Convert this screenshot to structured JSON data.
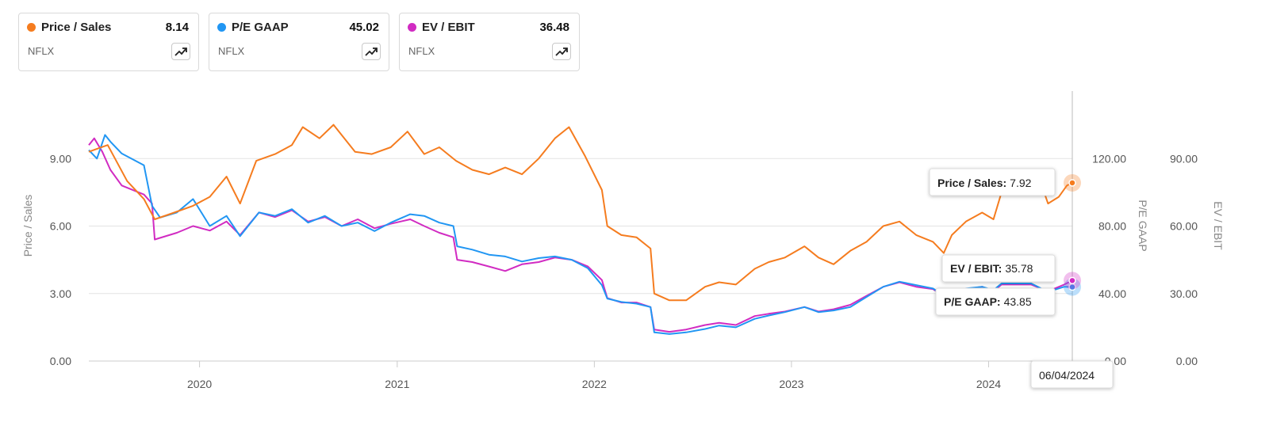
{
  "cards": [
    {
      "name": "Price / Sales",
      "value": "8.14",
      "ticker": "NFLX",
      "color": "#f57c1f",
      "icon": "trend-up-icon"
    },
    {
      "name": "P/E GAAP",
      "value": "45.02",
      "ticker": "NFLX",
      "color": "#2196f3",
      "icon": "trend-up-icon"
    },
    {
      "name": "EV / EBIT",
      "value": "36.48",
      "ticker": "NFLX",
      "color": "#d12bc2",
      "icon": "trend-up-icon"
    }
  ],
  "tooltips": {
    "ps": {
      "label": "Price / Sales:",
      "value": "7.92"
    },
    "ev": {
      "label": "EV / EBIT:",
      "value": "35.78"
    },
    "pe": {
      "label": "P/E GAAP:",
      "value": "43.85"
    },
    "date": "06/04/2024"
  },
  "chart_data": {
    "type": "line",
    "x_range": [
      "2019-06-10",
      "2024-06-04"
    ],
    "x_ticks": [
      "2020",
      "2021",
      "2022",
      "2023",
      "2024"
    ],
    "grid": true,
    "axes": {
      "left": {
        "title": "Price / Sales",
        "ticks": [
          "0.00",
          "3.00",
          "6.00",
          "9.00"
        ],
        "range": [
          0,
          12
        ]
      },
      "right1": {
        "title": "P/E GAAP",
        "ticks": [
          "0.00",
          "40.00",
          "80.00",
          "120.00"
        ],
        "range": [
          0,
          160
        ]
      },
      "right2": {
        "title": "EV / EBIT",
        "ticks": [
          "0.00",
          "30.00",
          "60.00",
          "90.00"
        ],
        "range": [
          0,
          120
        ]
      }
    },
    "series": [
      {
        "name": "Price / Sales",
        "color": "#f57c1f",
        "axis": "left",
        "points": [
          [
            "2019-06-10",
            9.3
          ],
          [
            "2019-07-15",
            9.6
          ],
          [
            "2019-08-20",
            8.0
          ],
          [
            "2019-09-20",
            7.2
          ],
          [
            "2019-10-10",
            6.3
          ],
          [
            "2019-11-15",
            6.6
          ],
          [
            "2019-12-20",
            6.9
          ],
          [
            "2020-01-20",
            7.3
          ],
          [
            "2020-02-20",
            8.2
          ],
          [
            "2020-03-16",
            7.0
          ],
          [
            "2020-04-15",
            8.9
          ],
          [
            "2020-05-20",
            9.2
          ],
          [
            "2020-06-20",
            9.6
          ],
          [
            "2020-07-10",
            10.4
          ],
          [
            "2020-08-10",
            9.9
          ],
          [
            "2020-09-05",
            10.5
          ],
          [
            "2020-10-15",
            9.3
          ],
          [
            "2020-11-15",
            9.2
          ],
          [
            "2020-12-20",
            9.5
          ],
          [
            "2021-01-20",
            10.2
          ],
          [
            "2021-02-20",
            9.2
          ],
          [
            "2021-03-20",
            9.5
          ],
          [
            "2021-04-20",
            8.9
          ],
          [
            "2021-05-20",
            8.5
          ],
          [
            "2021-06-20",
            8.3
          ],
          [
            "2021-07-20",
            8.6
          ],
          [
            "2021-08-20",
            8.3
          ],
          [
            "2021-09-20",
            9.0
          ],
          [
            "2021-10-20",
            9.9
          ],
          [
            "2021-11-15",
            10.4
          ],
          [
            "2021-12-15",
            9.1
          ],
          [
            "2022-01-15",
            7.6
          ],
          [
            "2022-01-25",
            6.0
          ],
          [
            "2022-02-20",
            5.6
          ],
          [
            "2022-03-20",
            5.5
          ],
          [
            "2022-04-15",
            5.0
          ],
          [
            "2022-04-22",
            3.0
          ],
          [
            "2022-05-20",
            2.7
          ],
          [
            "2022-06-20",
            2.7
          ],
          [
            "2022-07-25",
            3.3
          ],
          [
            "2022-08-20",
            3.5
          ],
          [
            "2022-09-20",
            3.4
          ],
          [
            "2022-10-25",
            4.1
          ],
          [
            "2022-11-20",
            4.4
          ],
          [
            "2022-12-20",
            4.6
          ],
          [
            "2023-01-25",
            5.1
          ],
          [
            "2023-02-20",
            4.6
          ],
          [
            "2023-03-20",
            4.3
          ],
          [
            "2023-04-20",
            4.9
          ],
          [
            "2023-05-20",
            5.3
          ],
          [
            "2023-06-20",
            6.0
          ],
          [
            "2023-07-20",
            6.2
          ],
          [
            "2023-08-20",
            5.6
          ],
          [
            "2023-09-20",
            5.3
          ],
          [
            "2023-10-10",
            4.8
          ],
          [
            "2023-10-25",
            5.6
          ],
          [
            "2023-11-20",
            6.2
          ],
          [
            "2023-12-20",
            6.6
          ],
          [
            "2024-01-10",
            6.3
          ],
          [
            "2024-01-25",
            7.5
          ],
          [
            "2024-02-20",
            7.8
          ],
          [
            "2024-03-20",
            7.9
          ],
          [
            "2024-04-10",
            7.7
          ],
          [
            "2024-04-20",
            7.0
          ],
          [
            "2024-05-10",
            7.3
          ],
          [
            "2024-05-25",
            7.8
          ],
          [
            "2024-06-04",
            7.92
          ]
        ]
      },
      {
        "name": "P/E GAAP",
        "color": "#2196f3",
        "axis": "right1",
        "points": [
          [
            "2019-06-10",
            125
          ],
          [
            "2019-06-25",
            120
          ],
          [
            "2019-07-10",
            134
          ],
          [
            "2019-07-20",
            130
          ],
          [
            "2019-08-10",
            123
          ],
          [
            "2019-09-20",
            116
          ],
          [
            "2019-10-05",
            92
          ],
          [
            "2019-10-20",
            85
          ],
          [
            "2019-11-20",
            88
          ],
          [
            "2019-12-20",
            96
          ],
          [
            "2020-01-20",
            80
          ],
          [
            "2020-02-20",
            86
          ],
          [
            "2020-03-16",
            74
          ],
          [
            "2020-04-20",
            88
          ],
          [
            "2020-05-20",
            86
          ],
          [
            "2020-06-20",
            90
          ],
          [
            "2020-07-20",
            82
          ],
          [
            "2020-08-20",
            86
          ],
          [
            "2020-09-20",
            80
          ],
          [
            "2020-10-20",
            82
          ],
          [
            "2020-11-20",
            77
          ],
          [
            "2020-12-20",
            82
          ],
          [
            "2021-01-25",
            87
          ],
          [
            "2021-02-20",
            86
          ],
          [
            "2021-03-20",
            82
          ],
          [
            "2021-04-15",
            80
          ],
          [
            "2021-04-22",
            68
          ],
          [
            "2021-05-20",
            66
          ],
          [
            "2021-06-20",
            63
          ],
          [
            "2021-07-20",
            62
          ],
          [
            "2021-08-20",
            59
          ],
          [
            "2021-09-20",
            61
          ],
          [
            "2021-10-20",
            62
          ],
          [
            "2021-11-20",
            60
          ],
          [
            "2021-12-20",
            55
          ],
          [
            "2022-01-15",
            45
          ],
          [
            "2022-01-25",
            37
          ],
          [
            "2022-02-20",
            35
          ],
          [
            "2022-03-20",
            34
          ],
          [
            "2022-04-15",
            32
          ],
          [
            "2022-04-22",
            17
          ],
          [
            "2022-05-20",
            16
          ],
          [
            "2022-06-20",
            17
          ],
          [
            "2022-07-25",
            19
          ],
          [
            "2022-08-20",
            21
          ],
          [
            "2022-09-20",
            20
          ],
          [
            "2022-10-25",
            25
          ],
          [
            "2022-11-20",
            27
          ],
          [
            "2022-12-20",
            29
          ],
          [
            "2023-01-25",
            32
          ],
          [
            "2023-02-20",
            29
          ],
          [
            "2023-03-20",
            30
          ],
          [
            "2023-04-20",
            32
          ],
          [
            "2023-05-20",
            38
          ],
          [
            "2023-06-20",
            44
          ],
          [
            "2023-07-20",
            47
          ],
          [
            "2023-08-20",
            45
          ],
          [
            "2023-09-20",
            43
          ],
          [
            "2023-10-10",
            39
          ],
          [
            "2023-10-25",
            42
          ],
          [
            "2023-11-20",
            43
          ],
          [
            "2023-12-20",
            44
          ],
          [
            "2024-01-10",
            42
          ],
          [
            "2024-01-25",
            46
          ],
          [
            "2024-03-20",
            46
          ],
          [
            "2024-04-20",
            41
          ],
          [
            "2024-05-20",
            44
          ],
          [
            "2024-06-04",
            43.85
          ]
        ]
      },
      {
        "name": "EV / EBIT",
        "color": "#d12bc2",
        "axis": "right2",
        "points": [
          [
            "2019-06-10",
            96
          ],
          [
            "2019-06-20",
            99
          ],
          [
            "2019-07-05",
            93
          ],
          [
            "2019-07-20",
            85
          ],
          [
            "2019-08-10",
            78
          ],
          [
            "2019-09-20",
            74
          ],
          [
            "2019-10-05",
            70
          ],
          [
            "2019-10-10",
            54
          ],
          [
            "2019-11-20",
            57
          ],
          [
            "2019-12-20",
            60
          ],
          [
            "2020-01-20",
            58
          ],
          [
            "2020-02-20",
            62
          ],
          [
            "2020-03-16",
            56
          ],
          [
            "2020-04-20",
            66
          ],
          [
            "2020-05-20",
            64
          ],
          [
            "2020-06-20",
            67
          ],
          [
            "2020-07-20",
            62
          ],
          [
            "2020-08-20",
            64
          ],
          [
            "2020-09-20",
            60
          ],
          [
            "2020-10-20",
            63
          ],
          [
            "2020-11-20",
            59
          ],
          [
            "2020-12-20",
            61
          ],
          [
            "2021-01-25",
            63
          ],
          [
            "2021-02-20",
            60
          ],
          [
            "2021-03-20",
            57
          ],
          [
            "2021-04-15",
            55
          ],
          [
            "2021-04-22",
            45
          ],
          [
            "2021-05-20",
            44
          ],
          [
            "2021-06-20",
            42
          ],
          [
            "2021-07-20",
            40
          ],
          [
            "2021-08-20",
            43
          ],
          [
            "2021-09-20",
            44
          ],
          [
            "2021-10-20",
            46
          ],
          [
            "2021-11-20",
            45
          ],
          [
            "2021-12-20",
            42
          ],
          [
            "2022-01-15",
            36
          ],
          [
            "2022-01-25",
            28
          ],
          [
            "2022-02-20",
            26
          ],
          [
            "2022-03-20",
            26
          ],
          [
            "2022-04-15",
            24
          ],
          [
            "2022-04-22",
            14
          ],
          [
            "2022-05-20",
            13
          ],
          [
            "2022-06-20",
            14
          ],
          [
            "2022-07-25",
            16
          ],
          [
            "2022-08-20",
            17
          ],
          [
            "2022-09-20",
            16
          ],
          [
            "2022-10-25",
            20
          ],
          [
            "2022-11-20",
            21
          ],
          [
            "2022-12-20",
            22
          ],
          [
            "2023-01-25",
            24
          ],
          [
            "2023-02-20",
            22
          ],
          [
            "2023-03-20",
            23
          ],
          [
            "2023-04-20",
            25
          ],
          [
            "2023-05-20",
            29
          ],
          [
            "2023-06-20",
            33
          ],
          [
            "2023-07-20",
            35
          ],
          [
            "2023-08-20",
            33
          ],
          [
            "2023-09-20",
            32
          ],
          [
            "2023-10-10",
            29
          ],
          [
            "2023-10-25",
            31
          ],
          [
            "2023-11-20",
            32
          ],
          [
            "2023-12-20",
            33
          ],
          [
            "2024-01-10",
            31
          ],
          [
            "2024-01-25",
            34
          ],
          [
            "2024-03-20",
            34
          ],
          [
            "2024-04-20",
            31
          ],
          [
            "2024-05-20",
            34
          ],
          [
            "2024-06-04",
            35.78
          ]
        ]
      }
    ]
  }
}
